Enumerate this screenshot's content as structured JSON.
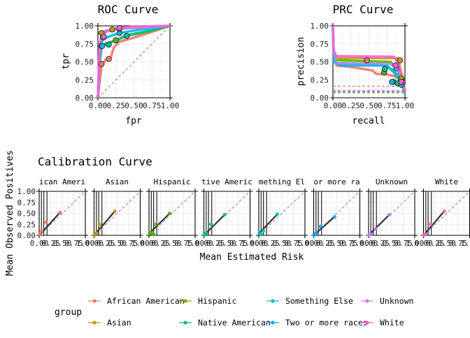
{
  "chart_data": [
    {
      "type": "line",
      "title": "ROC Curve",
      "xlabel": "fpr",
      "ylabel": "tpr",
      "xlim": [
        0,
        1
      ],
      "ylim": [
        0,
        1
      ],
      "xticks": [
        "0.00",
        "0.25",
        "0.50",
        "0.75",
        "1.00"
      ],
      "yticks": [
        "0.00",
        "0.25",
        "0.50",
        "0.75",
        "1.00"
      ],
      "grid": true,
      "reference_line": "diagonal",
      "series": [
        {
          "color": "#F8766D",
          "points": [
            [
              0,
              0
            ],
            [
              0.02,
              0.2
            ],
            [
              0.05,
              0.45
            ],
            [
              0.1,
              0.52
            ],
            [
              0.18,
              0.56
            ],
            [
              0.22,
              0.7
            ],
            [
              0.3,
              0.78
            ],
            [
              0.45,
              0.82
            ],
            [
              0.7,
              0.9
            ],
            [
              1,
              1
            ]
          ],
          "markers": [
            [
              0.05,
              0.47
            ],
            [
              0.15,
              0.54
            ]
          ]
        },
        {
          "color": "#C49A00",
          "points": [
            [
              0,
              0
            ],
            [
              0.02,
              0.5
            ],
            [
              0.05,
              0.85
            ],
            [
              0.1,
              0.92
            ],
            [
              0.2,
              0.95
            ],
            [
              0.4,
              0.97
            ],
            [
              1,
              1
            ]
          ],
          "markers": [
            [
              0.05,
              0.9
            ],
            [
              0.2,
              0.95
            ]
          ]
        },
        {
          "color": "#53B400",
          "points": [
            [
              0,
              0
            ],
            [
              0.02,
              0.45
            ],
            [
              0.05,
              0.7
            ],
            [
              0.1,
              0.75
            ],
            [
              0.25,
              0.8
            ],
            [
              0.4,
              0.86
            ],
            [
              0.7,
              0.92
            ],
            [
              1,
              1
            ]
          ],
          "markers": [
            [
              0.05,
              0.72
            ],
            [
              0.25,
              0.8
            ]
          ]
        },
        {
          "color": "#00C094",
          "points": [
            [
              0,
              0
            ],
            [
              0.02,
              0.5
            ],
            [
              0.05,
              0.72
            ],
            [
              0.15,
              0.76
            ],
            [
              0.3,
              0.82
            ],
            [
              0.4,
              0.87
            ],
            [
              0.7,
              0.93
            ],
            [
              1,
              1
            ]
          ],
          "markers": [
            [
              0.15,
              0.74
            ],
            [
              0.4,
              0.86
            ]
          ]
        },
        {
          "color": "#00B6EB",
          "points": [
            [
              0,
              0
            ],
            [
              0.02,
              0.55
            ],
            [
              0.06,
              0.8
            ],
            [
              0.15,
              0.85
            ],
            [
              0.3,
              0.9
            ],
            [
              0.6,
              0.95
            ],
            [
              1,
              1
            ]
          ],
          "markers": [
            [
              0.06,
              0.72
            ],
            [
              0.3,
              0.9
            ]
          ]
        },
        {
          "color": "#A58AFF",
          "points": [
            [
              0,
              0
            ],
            [
              0.02,
              0.6
            ],
            [
              0.05,
              0.85
            ],
            [
              0.12,
              0.92
            ],
            [
              0.3,
              0.96
            ],
            [
              1,
              1
            ]
          ],
          "markers": [
            [
              0.07,
              0.84
            ],
            [
              0.3,
              0.96
            ]
          ]
        },
        {
          "color": "#FB61D7",
          "points": [
            [
              0,
              0
            ],
            [
              0.02,
              0.7
            ],
            [
              0.05,
              0.88
            ],
            [
              0.1,
              0.93
            ],
            [
              0.3,
              0.97
            ],
            [
              0.5,
              0.99
            ],
            [
              1,
              1
            ]
          ],
          "markers": [
            [
              0.08,
              0.85
            ],
            [
              0.3,
              0.97
            ]
          ]
        }
      ]
    },
    {
      "type": "line",
      "title": "PRC Curve",
      "xlabel": "recall",
      "ylabel": "precision",
      "xlim": [
        0,
        1
      ],
      "ylim": [
        0,
        1
      ],
      "xticks": [
        "0.00",
        "0.25",
        "0.50",
        "0.75",
        "1.00"
      ],
      "yticks": [
        "0.00",
        "0.25",
        "0.50",
        "0.75",
        "1.00"
      ],
      "grid": true,
      "series": [
        {
          "color": "#F8766D",
          "baseline": 0.16,
          "points": [
            [
              0,
              1
            ],
            [
              0.01,
              0.6
            ],
            [
              0.05,
              0.45
            ],
            [
              0.3,
              0.42
            ],
            [
              0.55,
              0.38
            ],
            [
              0.6,
              0.33
            ],
            [
              0.72,
              0.33
            ],
            [
              0.85,
              0.3
            ],
            [
              0.95,
              0.25
            ],
            [
              1,
              0.16
            ]
          ],
          "markers": [
            [
              0.47,
              0.52
            ],
            [
              0.95,
              0.26
            ]
          ]
        },
        {
          "color": "#C49A00",
          "baseline": 0.09,
          "points": [
            [
              0,
              1
            ],
            [
              0.01,
              0.6
            ],
            [
              0.05,
              0.55
            ],
            [
              0.85,
              0.55
            ],
            [
              0.9,
              0.55
            ],
            [
              0.95,
              0.35
            ],
            [
              1,
              0.09
            ]
          ],
          "markers": [
            [
              0.93,
              0.52
            ],
            [
              0.95,
              0.27
            ]
          ]
        },
        {
          "color": "#53B400",
          "baseline": 0.07,
          "points": [
            [
              0,
              1
            ],
            [
              0.01,
              0.55
            ],
            [
              0.05,
              0.52
            ],
            [
              0.8,
              0.5
            ],
            [
              0.9,
              0.4
            ],
            [
              0.95,
              0.2
            ],
            [
              1,
              0.07
            ]
          ],
          "markers": [
            [
              0.71,
              0.35
            ],
            [
              0.84,
              0.22
            ]
          ]
        },
        {
          "color": "#00C094",
          "baseline": 0.08,
          "points": [
            [
              0,
              1
            ],
            [
              0.01,
              0.5
            ],
            [
              0.05,
              0.48
            ],
            [
              0.75,
              0.45
            ],
            [
              0.85,
              0.35
            ],
            [
              0.95,
              0.2
            ],
            [
              1,
              0.08
            ]
          ],
          "markers": [
            [
              0.72,
              0.4
            ],
            [
              0.9,
              0.2
            ]
          ]
        },
        {
          "color": "#00B6EB",
          "baseline": 0.09,
          "points": [
            [
              0,
              1
            ],
            [
              0.01,
              0.7
            ],
            [
              0.03,
              0.5
            ],
            [
              0.1,
              0.45
            ],
            [
              0.7,
              0.45
            ],
            [
              0.85,
              0.38
            ],
            [
              0.95,
              0.22
            ],
            [
              1,
              0.09
            ]
          ],
          "markers": [
            [
              0.82,
              0.22
            ],
            [
              0.95,
              0.18
            ]
          ]
        },
        {
          "color": "#A58AFF",
          "baseline": 0.08,
          "points": [
            [
              0,
              1
            ],
            [
              0.01,
              0.6
            ],
            [
              0.05,
              0.48
            ],
            [
              0.8,
              0.47
            ],
            [
              0.9,
              0.4
            ],
            [
              0.97,
              0.2
            ],
            [
              1,
              0.08
            ]
          ],
          "markers": [
            [
              0.88,
              0.41
            ],
            [
              0.97,
              0.22
            ]
          ]
        },
        {
          "color": "#FB61D7",
          "baseline": 0.1,
          "points": [
            [
              0,
              1
            ],
            [
              0.01,
              0.65
            ],
            [
              0.05,
              0.58
            ],
            [
              0.85,
              0.57
            ],
            [
              0.92,
              0.45
            ],
            [
              0.97,
              0.2
            ],
            [
              1,
              0.1
            ]
          ],
          "markers": [
            [
              0.87,
              0.45
            ],
            [
              0.95,
              0.22
            ]
          ]
        }
      ]
    },
    {
      "type": "scatter",
      "title": "Calibration Curve",
      "xlabel": "Mean Estimated Risk",
      "ylabel": "Mean Observed Positives",
      "xlim": [
        0,
        1
      ],
      "ylim": [
        0,
        1
      ],
      "xticks": [
        "0.00",
        "0.25",
        "0.50",
        "0.75",
        "1.00"
      ],
      "yticks": [
        "0.00",
        "0.25",
        "0.50",
        "0.75",
        "1.00"
      ],
      "grid": true,
      "reference_line": "diagonal",
      "legend_title": "group",
      "legend_position": "bottom",
      "facets": [
        {
          "label": "African American",
          "strip": "ican Ameri",
          "color": "#F8766D",
          "points": [
            [
              0.02,
              0.02
            ],
            [
              0.05,
              0.1
            ],
            [
              0.15,
              0.3
            ],
            [
              0.45,
              0.52
            ]
          ]
        },
        {
          "label": "Asian",
          "strip": "Asian",
          "color": "#C49A00",
          "points": [
            [
              0.01,
              0.01
            ],
            [
              0.05,
              0.05
            ],
            [
              0.12,
              0.25
            ],
            [
              0.45,
              0.55
            ]
          ]
        },
        {
          "label": "Hispanic",
          "strip": "Hispanic",
          "color": "#53B400",
          "points": [
            [
              0.01,
              0.05
            ],
            [
              0.05,
              0.05
            ],
            [
              0.1,
              0.02
            ],
            [
              0.15,
              0.25
            ],
            [
              0.45,
              0.5
            ]
          ]
        },
        {
          "label": "Native American",
          "strip": "tive Americ",
          "color": "#00C094",
          "points": [
            [
              0.01,
              0.01
            ],
            [
              0.05,
              0.05
            ],
            [
              0.15,
              0.25
            ],
            [
              0.45,
              0.47
            ]
          ]
        },
        {
          "label": "Something Else",
          "strip": "mething El",
          "color": "#00BFC4",
          "points": [
            [
              0.01,
              0.05
            ],
            [
              0.05,
              0.02
            ],
            [
              0.1,
              0.1
            ],
            [
              0.4,
              0.48
            ]
          ]
        },
        {
          "label": "Two or more races",
          "strip": "or more ra",
          "color": "#00A9FF",
          "points": [
            [
              0.01,
              0.01
            ],
            [
              0.05,
              0.05
            ],
            [
              0.15,
              0.2
            ],
            [
              0.45,
              0.42
            ]
          ]
        },
        {
          "label": "Unknown",
          "strip": "Unknown",
          "color": "#C77CFF",
          "points": [
            [
              0.01,
              0.01
            ],
            [
              0.05,
              0.02
            ],
            [
              0.15,
              0.15
            ],
            [
              0.45,
              0.47
            ]
          ]
        },
        {
          "label": "White",
          "strip": "White",
          "color": "#FF61CC",
          "points": [
            [
              0.01,
              0.01
            ],
            [
              0.05,
              0.02
            ],
            [
              0.15,
              0.25
            ],
            [
              0.45,
              0.55
            ]
          ]
        }
      ],
      "legend": [
        {
          "label": "African American",
          "color": "#F8766D"
        },
        {
          "label": "Asian",
          "color": "#C49A00"
        },
        {
          "label": "Hispanic",
          "color": "#7CAE00"
        },
        {
          "label": "Native American",
          "color": "#00BE67"
        },
        {
          "label": "Something Else",
          "color": "#00BFC4"
        },
        {
          "label": "Two or more races",
          "color": "#00A9FF"
        },
        {
          "label": "Unknown",
          "color": "#C77CFF"
        },
        {
          "label": "White",
          "color": "#FF61CC"
        }
      ]
    }
  ]
}
